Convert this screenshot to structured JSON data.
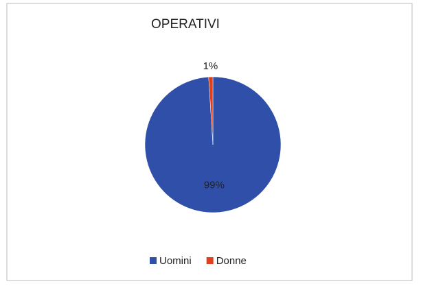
{
  "chart_data": {
    "type": "pie",
    "title": "OPERATIVI",
    "categories": [
      "Uomini",
      "Donne"
    ],
    "values": [
      99,
      1
    ],
    "value_labels": [
      "99%",
      "1%"
    ],
    "colors": [
      "#2f4fa8",
      "#e2401c"
    ],
    "legend": "bottom"
  }
}
